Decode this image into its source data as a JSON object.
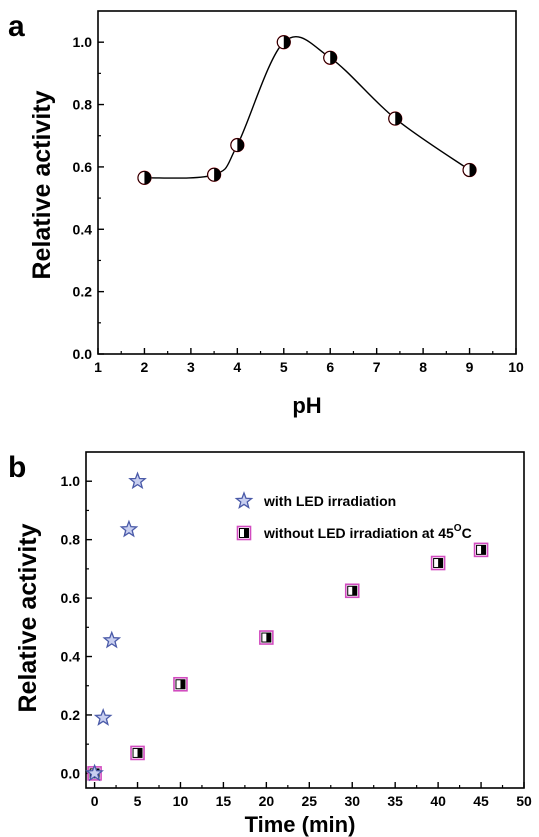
{
  "chart_data": [
    {
      "type": "scatter",
      "panel_label": "a",
      "title": "",
      "xlabel": "pH",
      "ylabel": "Relative activity",
      "xlim": [
        1,
        10
      ],
      "ylim": [
        0.0,
        1.1
      ],
      "xticks": [
        "1",
        "2",
        "3",
        "4",
        "5",
        "6",
        "7",
        "8",
        "9",
        "10"
      ],
      "yticks": [
        "0.0",
        "0.2",
        "0.4",
        "0.6",
        "0.8",
        "1.0"
      ],
      "grid": false,
      "series": [
        {
          "x": [
            2,
            3.5,
            4,
            5,
            6,
            7.4,
            9
          ],
          "y": [
            0.565,
            0.575,
            0.67,
            1.0,
            0.95,
            0.755,
            0.59
          ],
          "marker": "half-filled-circle",
          "color": "#e8202a",
          "smooth_line": true
        }
      ]
    },
    {
      "type": "scatter",
      "panel_label": "b",
      "title": "",
      "xlabel": "Time (min)",
      "ylabel": "Relative activity",
      "xlim": [
        -1,
        50
      ],
      "ylim": [
        -0.05,
        1.1
      ],
      "xticks": [
        "0",
        "5",
        "10",
        "15",
        "20",
        "25",
        "30",
        "35",
        "40",
        "45",
        "50"
      ],
      "yticks": [
        "0.0",
        "0.2",
        "0.4",
        "0.6",
        "0.8",
        "1.0"
      ],
      "grid": false,
      "legend_position": "top-right",
      "series": [
        {
          "name": "with LED irradiation",
          "x": [
            0,
            1,
            2,
            4,
            5
          ],
          "y": [
            0.0,
            0.19,
            0.455,
            0.835,
            1.0
          ],
          "marker": "star",
          "color": "#4a5aa8"
        },
        {
          "name_prefix": "without LED irradiation at 45",
          "name_superscript": "O",
          "name_suffix": "C",
          "x": [
            0,
            5,
            10,
            20,
            30,
            40,
            45
          ],
          "y": [
            0.0,
            0.07,
            0.305,
            0.465,
            0.625,
            0.72,
            0.765
          ],
          "marker": "half-filled-square",
          "color": "#d24cc0"
        }
      ]
    }
  ]
}
